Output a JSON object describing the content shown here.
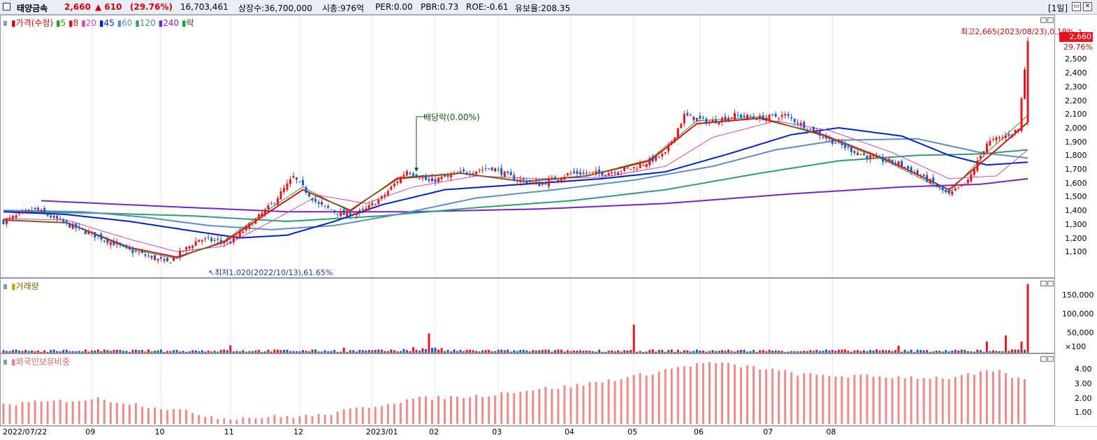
{
  "header": {
    "name": "태양금속",
    "price": "2,660",
    "change": "▲ 610",
    "change_pct": "(29.76%)",
    "volume": "16,703,461",
    "listed": "상장수:36,700,000",
    "mcap": "시총:976억",
    "per": "PER:0.00",
    "pbr": "PBR:0.73",
    "roe": "ROE:-0.61",
    "reserve": "유보율:208.35",
    "period": "[1일]"
  },
  "colors": {
    "up": "#e8141e",
    "down": "#1a5bd0",
    "ma5": "#1fa51f",
    "ma8": "#e01010",
    "ma20": "#d040c0",
    "ma45": "#0022cc",
    "ma60": "#5a8ec8",
    "ma120": "#2aa070",
    "ma240": "#7a22c8"
  },
  "price_legend": {
    "price": "가격(수정)",
    "ma5": "5",
    "ma8": "8",
    "ma20": "20",
    "ma45": "45",
    "ma60": "60",
    "ma120": "120",
    "ma240": "240",
    "ex": "락"
  },
  "volume_legend": "거래량",
  "foreign_legend": "외국인보유비중",
  "annotations": {
    "high": "최고2,665(2023/08/23),0.19%",
    "low": "최저1,020(2022/10/13),61.65%",
    "dividend": "배당락(0.00%)"
  },
  "price_axis": {
    "last_price": "2,660",
    "last_pct": "29.76%",
    "ticks": [
      "2,500",
      "2,400",
      "2,300",
      "2,200",
      "2,100",
      "2,000",
      "1,900",
      "1,800",
      "1,700",
      "1,600",
      "1,500",
      "1,400",
      "1,300",
      "1,200",
      "1,100"
    ]
  },
  "volume_axis": {
    "ticks": [
      "150,000",
      "100,000",
      "50,000"
    ],
    "unit": "×100"
  },
  "foreign_axis": {
    "ticks": [
      "4.00",
      "3.00",
      "2.00",
      "1.00"
    ]
  },
  "x_labels": [
    "2022/07/22",
    "09",
    "10",
    "11",
    "12",
    "2023/01",
    "02",
    "03",
    "04",
    "05",
    "06",
    "07",
    "08"
  ],
  "chart_data": [
    {
      "type": "line",
      "title": "가격(수정)",
      "x_start": "2022/07/22",
      "x_end": "2023/08/23",
      "ylim": [
        1000,
        2700
      ],
      "series": [
        {
          "name": "가격(수정)",
          "points": [
            [
              0,
              1330
            ],
            [
              10,
              1420
            ],
            [
              20,
              1310
            ],
            [
              30,
              1220
            ],
            [
              40,
              1120
            ],
            [
              52,
              1030
            ],
            [
              62,
              1200
            ],
            [
              72,
              1180
            ],
            [
              78,
              1300
            ],
            [
              85,
              1450
            ],
            [
              92,
              1650
            ],
            [
              100,
              1450
            ],
            [
              108,
              1380
            ],
            [
              114,
              1400
            ],
            [
              120,
              1500
            ],
            [
              128,
              1700
            ],
            [
              135,
              1620
            ],
            [
              145,
              1680
            ],
            [
              155,
              1720
            ],
            [
              162,
              1640
            ],
            [
              170,
              1600
            ],
            [
              180,
              1680
            ],
            [
              190,
              1680
            ],
            [
              200,
              1720
            ],
            [
              210,
              1820
            ],
            [
              216,
              2100
            ],
            [
              224,
              2050
            ],
            [
              232,
              2100
            ],
            [
              240,
              2080
            ],
            [
              248,
              2100
            ],
            [
              256,
              2000
            ],
            [
              264,
              1900
            ],
            [
              274,
              1800
            ],
            [
              284,
              1750
            ],
            [
              292,
              1650
            ],
            [
              300,
              1520
            ],
            [
              306,
              1620
            ],
            [
              312,
              1900
            ],
            [
              318,
              1950
            ],
            [
              322,
              2000
            ],
            [
              325,
              2660
            ]
          ]
        },
        {
          "name": "5",
          "points": [
            [
              0,
              1340
            ],
            [
              20,
              1320
            ],
            [
              40,
              1130
            ],
            [
              55,
              1060
            ],
            [
              70,
              1190
            ],
            [
              85,
              1430
            ],
            [
              95,
              1580
            ],
            [
              110,
              1400
            ],
            [
              125,
              1650
            ],
            [
              145,
              1680
            ],
            [
              165,
              1620
            ],
            [
              185,
              1660
            ],
            [
              205,
              1780
            ],
            [
              220,
              2060
            ],
            [
              240,
              2090
            ],
            [
              260,
              1950
            ],
            [
              280,
              1770
            ],
            [
              300,
              1540
            ],
            [
              312,
              1830
            ],
            [
              325,
              2100
            ]
          ]
        },
        {
          "name": "8",
          "points": [
            [
              0,
              1340
            ],
            [
              20,
              1320
            ],
            [
              40,
              1140
            ],
            [
              55,
              1070
            ],
            [
              70,
              1180
            ],
            [
              85,
              1410
            ],
            [
              95,
              1560
            ],
            [
              110,
              1410
            ],
            [
              125,
              1640
            ],
            [
              145,
              1680
            ],
            [
              165,
              1620
            ],
            [
              185,
              1660
            ],
            [
              205,
              1770
            ],
            [
              220,
              2040
            ],
            [
              240,
              2080
            ],
            [
              260,
              1960
            ],
            [
              280,
              1780
            ],
            [
              300,
              1560
            ],
            [
              312,
              1790
            ],
            [
              325,
              2050
            ]
          ]
        },
        {
          "name": "20",
          "points": [
            [
              0,
              1350
            ],
            [
              20,
              1340
            ],
            [
              40,
              1200
            ],
            [
              55,
              1110
            ],
            [
              70,
              1150
            ],
            [
              85,
              1330
            ],
            [
              100,
              1520
            ],
            [
              115,
              1460
            ],
            [
              130,
              1580
            ],
            [
              150,
              1660
            ],
            [
              170,
              1640
            ],
            [
              190,
              1650
            ],
            [
              210,
              1730
            ],
            [
              225,
              1940
            ],
            [
              245,
              2060
            ],
            [
              262,
              1990
            ],
            [
              282,
              1830
            ],
            [
              300,
              1640
            ],
            [
              315,
              1660
            ],
            [
              325,
              1850
            ]
          ]
        },
        {
          "name": "45",
          "points": [
            [
              0,
              1400
            ],
            [
              20,
              1380
            ],
            [
              40,
              1330
            ],
            [
              60,
              1260
            ],
            [
              75,
              1210
            ],
            [
              90,
              1230
            ],
            [
              105,
              1330
            ],
            [
              120,
              1450
            ],
            [
              140,
              1560
            ],
            [
              165,
              1600
            ],
            [
              190,
              1640
            ],
            [
              210,
              1690
            ],
            [
              230,
              1820
            ],
            [
              250,
              1960
            ],
            [
              265,
              2010
            ],
            [
              285,
              1950
            ],
            [
              300,
              1810
            ],
            [
              312,
              1740
            ],
            [
              325,
              1760
            ]
          ]
        },
        {
          "name": "60",
          "points": [
            [
              0,
              1410
            ],
            [
              25,
              1400
            ],
            [
              45,
              1360
            ],
            [
              65,
              1300
            ],
            [
              85,
              1270
            ],
            [
              105,
              1300
            ],
            [
              125,
              1380
            ],
            [
              150,
              1500
            ],
            [
              175,
              1560
            ],
            [
              200,
              1630
            ],
            [
              225,
              1730
            ],
            [
              245,
              1850
            ],
            [
              265,
              1920
            ],
            [
              290,
              1930
            ],
            [
              310,
              1830
            ],
            [
              325,
              1790
            ]
          ]
        },
        {
          "name": "120",
          "points": [
            [
              0,
              1400
            ],
            [
              30,
              1390
            ],
            [
              60,
              1370
            ],
            [
              90,
              1330
            ],
            [
              120,
              1370
            ],
            [
              150,
              1430
            ],
            [
              180,
              1480
            ],
            [
              210,
              1560
            ],
            [
              240,
              1680
            ],
            [
              265,
              1770
            ],
            [
              290,
              1810
            ],
            [
              310,
              1820
            ],
            [
              325,
              1850
            ]
          ]
        },
        {
          "name": "240",
          "points": [
            [
              12,
              1480
            ],
            [
              50,
              1440
            ],
            [
              90,
              1400
            ],
            [
              130,
              1400
            ],
            [
              170,
              1420
            ],
            [
              210,
              1460
            ],
            [
              250,
              1530
            ],
            [
              285,
              1580
            ],
            [
              310,
              1600
            ],
            [
              325,
              1640
            ]
          ]
        }
      ]
    },
    {
      "type": "bar",
      "title": "거래량",
      "ylim": [
        0,
        170000
      ],
      "series": [
        {
          "name": "거래량",
          "points": [
            [
              72,
              18000
            ],
            [
              108,
              12000
            ],
            [
              135,
              47000
            ],
            [
              200,
              68000
            ],
            [
              284,
              17000
            ],
            [
              312,
              27000
            ],
            [
              318,
              42000
            ],
            [
              323,
              27000
            ],
            [
              325,
              167000
            ]
          ]
        }
      ]
    },
    {
      "type": "bar",
      "title": "외국인보유비중",
      "ylim": [
        0,
        5
      ],
      "series": [
        {
          "name": "외국인보유비중",
          "points": [
            [
              0,
              1.4
            ],
            [
              30,
              1.8
            ],
            [
              55,
              1.0
            ],
            [
              70,
              0.4
            ],
            [
              100,
              0.6
            ],
            [
              130,
              1.8
            ],
            [
              150,
              2.0
            ],
            [
              165,
              2.4
            ],
            [
              180,
              2.7
            ],
            [
              200,
              3.4
            ],
            [
              215,
              4.1
            ],
            [
              224,
              4.4
            ],
            [
              240,
              4.0
            ],
            [
              255,
              3.5
            ],
            [
              275,
              3.4
            ],
            [
              300,
              3.3
            ],
            [
              315,
              3.8
            ],
            [
              325,
              3.0
            ]
          ]
        }
      ]
    }
  ]
}
